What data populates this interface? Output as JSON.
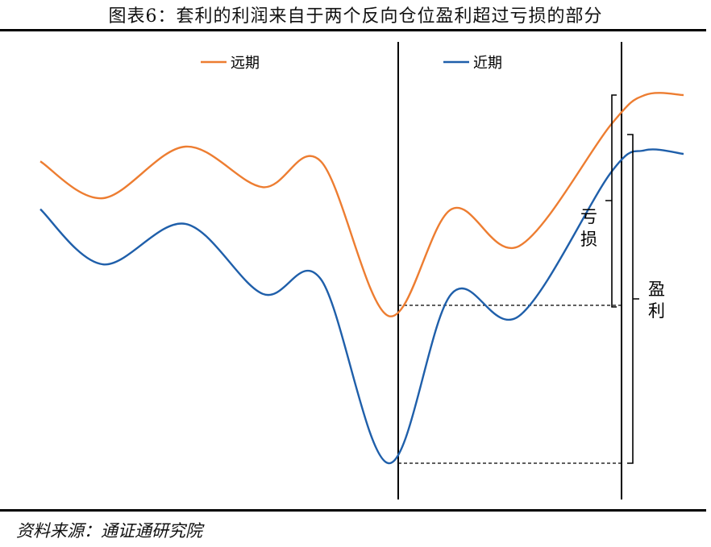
{
  "title": "图表6：套利的利润来自于两个反向仓位盈利超过亏损的部分",
  "source": "资料来源：通证通研究院",
  "chart_data": {
    "type": "line",
    "title": "图表6：套利的利润来自于两个反向仓位盈利超过亏损的部分",
    "xlabel": "",
    "ylabel": "",
    "ylim": [
      0,
      100
    ],
    "grid": false,
    "legend_placement": "top",
    "series": [
      {
        "name": "远期",
        "color": "#ED7D31",
        "points": [
          [
            0,
            82
          ],
          [
            13,
            72
          ],
          [
            30,
            86
          ],
          [
            46,
            75
          ],
          [
            58,
            82
          ],
          [
            72,
            40
          ],
          [
            85,
            69
          ],
          [
            99,
            59
          ],
          [
            118,
            92
          ],
          [
            125,
            100
          ],
          [
            133,
            100
          ]
        ]
      },
      {
        "name": "近期",
        "color": "#1F5FAA",
        "points": [
          [
            0,
            69
          ],
          [
            13,
            54
          ],
          [
            30,
            65
          ],
          [
            46,
            46
          ],
          [
            58,
            50
          ],
          [
            72,
            0
          ],
          [
            85,
            46
          ],
          [
            99,
            40
          ],
          [
            118,
            79
          ],
          [
            125,
            85
          ],
          [
            133,
            84
          ]
        ]
      }
    ],
    "annotations": [
      {
        "label": "亏",
        "kind": "bracket"
      },
      {
        "label": "损",
        "kind": "bracket"
      },
      {
        "label": "盈",
        "kind": "bracket"
      },
      {
        "label": "利",
        "kind": "bracket"
      }
    ]
  }
}
